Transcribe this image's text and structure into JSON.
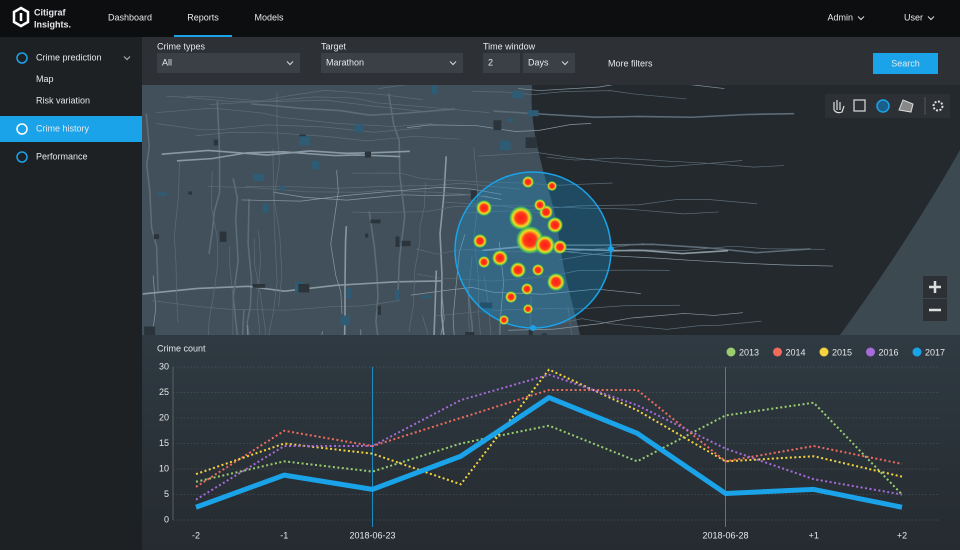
{
  "nav": {
    "logo": [
      "Citigraf",
      "Insights."
    ],
    "items": [
      "Dashboard",
      "Reports",
      "Models"
    ],
    "active": 1,
    "user_menu": [
      "Admin",
      "User"
    ]
  },
  "sidebar": {
    "items": [
      {
        "label": "Crime prediction",
        "children": [
          "Map",
          "Risk variation"
        ]
      },
      {
        "label": "Crime history",
        "active": true
      },
      {
        "label": "Performance"
      }
    ]
  },
  "filters": {
    "fields": [
      {
        "label": "Crime types",
        "value": "All"
      },
      {
        "label": "Target",
        "value": "Marathon"
      },
      {
        "label": "Time window",
        "value": "2",
        "unit": "Days"
      }
    ],
    "more_filters": "More filters",
    "search": "Search"
  },
  "chart_data": {
    "type": "line",
    "y_label": "Crime count",
    "categories": [
      "-2",
      "-1",
      "2018-06-23",
      null,
      null,
      null,
      "2018-06-28",
      "+1",
      "+2"
    ],
    "ylim": [
      0,
      30
    ],
    "yticks": [
      0,
      5,
      10,
      15,
      20,
      25,
      30
    ],
    "grid": true,
    "series": [
      {
        "name": "2013",
        "color": "#9acd6e",
        "style": "dotted",
        "values": [
          7.5,
          11.5,
          9.5,
          15,
          18.5,
          11.5,
          20.5,
          23,
          5
        ]
      },
      {
        "name": "2014",
        "color": "#f06a5d",
        "style": "dotted",
        "values": [
          6.5,
          17.5,
          14.5,
          20,
          25.5,
          25.5,
          11.5,
          14.5,
          11
        ]
      },
      {
        "name": "2015",
        "color": "#f5d33f",
        "style": "dotted",
        "values": [
          9,
          15,
          13,
          7,
          29.5,
          21.5,
          11.5,
          12.5,
          8.5
        ]
      },
      {
        "name": "2016",
        "color": "#a66bd9",
        "style": "dotted",
        "values": [
          4,
          14.5,
          14.5,
          23.5,
          28.5,
          22.5,
          14,
          8,
          5
        ]
      },
      {
        "name": "2017",
        "color": "#1aa3e8",
        "style": "solid",
        "values": [
          2.5,
          8.8,
          6,
          12.5,
          24,
          17,
          5.2,
          6,
          2.5
        ]
      }
    ]
  }
}
